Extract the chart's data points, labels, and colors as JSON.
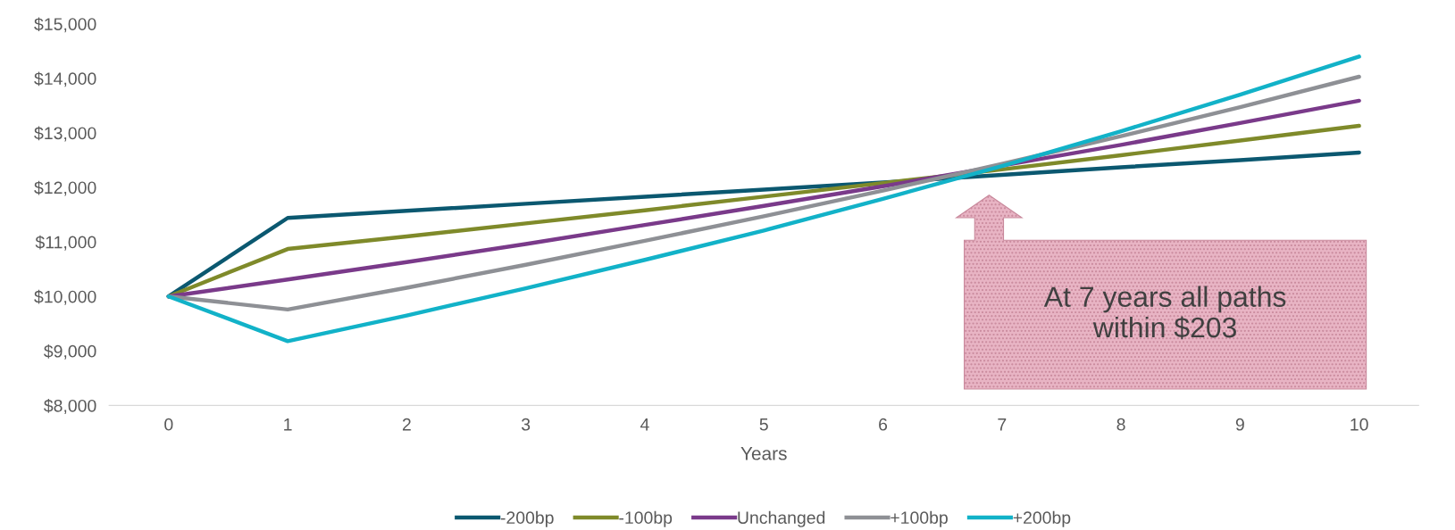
{
  "chart_data": {
    "type": "line",
    "xlabel": "Years",
    "x": [
      0,
      1,
      2,
      3,
      4,
      5,
      6,
      7,
      8,
      9,
      10
    ],
    "xlim": [
      -0.5,
      10.5
    ],
    "xticks": [
      0,
      1,
      2,
      3,
      4,
      5,
      6,
      7,
      8,
      9,
      10
    ],
    "ylim": [
      8000,
      15000
    ],
    "yticks": [
      {
        "value": 8000,
        "label": "$8,000"
      },
      {
        "value": 9000,
        "label": "$9,000"
      },
      {
        "value": 10000,
        "label": "$10,000"
      },
      {
        "value": 11000,
        "label": "$11,000"
      },
      {
        "value": 12000,
        "label": "$12,000"
      },
      {
        "value": 13000,
        "label": "$13,000"
      },
      {
        "value": 14000,
        "label": "$14,000"
      },
      {
        "value": 15000,
        "label": "$15,000"
      }
    ],
    "grid": false,
    "legend": "bottom",
    "marker": "none",
    "line_style": "solid",
    "series": [
      {
        "name": "-200bp",
        "color": "#0b5870",
        "values": [
          10000,
          11440,
          11570,
          11700,
          11830,
          11960,
          12090,
          12230,
          12370,
          12500,
          12640
        ]
      },
      {
        "name": "-100bp",
        "color": "#7f8a2a",
        "values": [
          10000,
          10870,
          11100,
          11340,
          11580,
          11830,
          12080,
          12330,
          12590,
          12860,
          13130
        ]
      },
      {
        "name": "Unchanged",
        "color": "#7a3a8a",
        "values": [
          10000,
          10310,
          10630,
          10960,
          11310,
          11660,
          12020,
          12400,
          12780,
          13180,
          13590
        ]
      },
      {
        "name": "+100bp",
        "color": "#8e9095",
        "values": [
          10000,
          9760,
          10160,
          10580,
          11020,
          11470,
          11940,
          12430,
          12940,
          13470,
          14030
        ]
      },
      {
        "name": "+200bp",
        "color": "#12b2c8",
        "values": [
          10000,
          9180,
          9650,
          10150,
          10670,
          11210,
          11790,
          12390,
          13030,
          13700,
          14400
        ]
      }
    ],
    "annotations": [
      "At 7 years all paths within $203"
    ]
  }
}
